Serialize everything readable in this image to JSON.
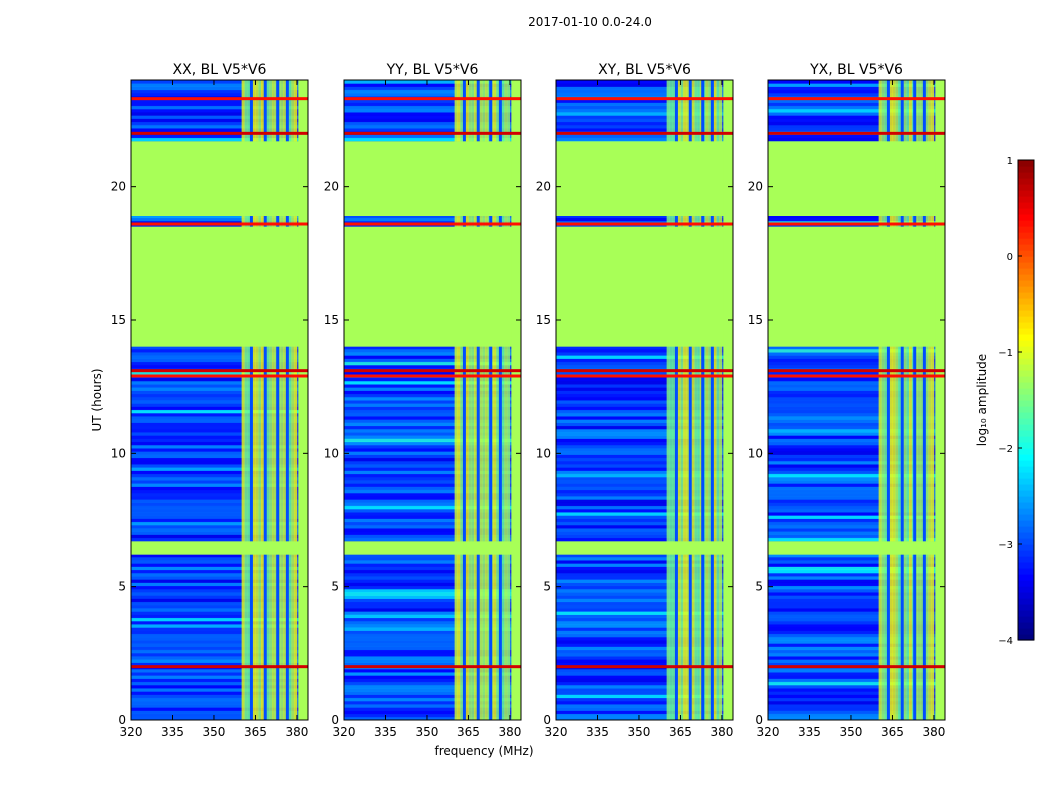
{
  "figure": {
    "suptitle": "2017-01-10 0.0-24.0",
    "xlabel": "frequency (MHz)",
    "ylabel": "UT (hours)",
    "xticks": [
      "320",
      "335",
      "350",
      "365",
      "380"
    ],
    "yticks": [
      "0",
      "5",
      "10",
      "15",
      "20"
    ]
  },
  "colorbar": {
    "label": "log₁₀ amplitude",
    "ticks": [
      "1",
      "0",
      "−1",
      "−2",
      "−3",
      "−4"
    ],
    "range": [
      -4,
      1
    ],
    "colormap": "jet"
  },
  "chart_data": {
    "type": "heatmap",
    "colormap": "jet",
    "x_range_mhz": [
      320,
      384
    ],
    "y_range_hours": [
      0,
      24
    ],
    "value_range_log10": [
      -4,
      1
    ],
    "panels": [
      {
        "title": "XX, BL V5*V6"
      },
      {
        "title": "YY, BL V5*V6"
      },
      {
        "title": "XY, BL V5*V6"
      },
      {
        "title": "YX, BL V5*V6"
      }
    ],
    "flagged_rows_hours": [
      [
        14.0,
        18.5
      ],
      [
        18.9,
        21.7
      ],
      [
        6.2,
        6.7
      ]
    ],
    "flagged_columns_mhz": [
      [
        380.5,
        384.0
      ]
    ],
    "rfi_rows_hours": [
      2.0,
      12.9,
      13.1,
      18.6,
      22.0,
      23.3
    ],
    "rfi_band_mhz": [
      360,
      380
    ]
  }
}
